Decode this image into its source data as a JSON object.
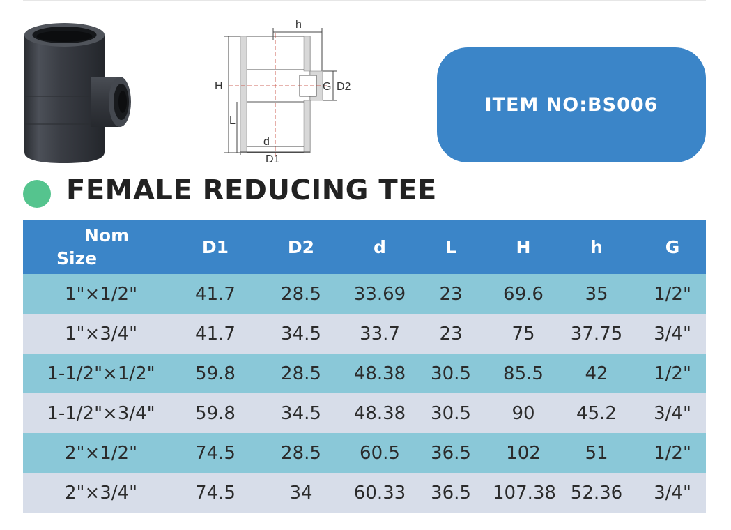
{
  "item_badge": {
    "text": "ITEM NO:BS006"
  },
  "title": "FEMALE REDUCING TEE",
  "diagram_labels": {
    "h": "h",
    "H": "H",
    "G": "G",
    "D2": "D2",
    "L": "L",
    "d": "d",
    "D1": "D1"
  },
  "table": {
    "headers": {
      "nom_line1": "Nom",
      "nom_line2": "Size",
      "d1": "D1",
      "d2": "D2",
      "d": "d",
      "l": "L",
      "h_big": "H",
      "h_small": "h",
      "g": "G"
    },
    "rows": [
      {
        "size": "1\"×1/2\"",
        "d1": "41.7",
        "d2": "28.5",
        "d": "33.69",
        "l": "23",
        "H": "69.6",
        "h": "35",
        "g": "1/2\""
      },
      {
        "size": "1\"×3/4\"",
        "d1": "41.7",
        "d2": "34.5",
        "d": "33.7",
        "l": "23",
        "H": "75",
        "h": "37.75",
        "g": "3/4\""
      },
      {
        "size": "1-1/2\"×1/2\"",
        "d1": "59.8",
        "d2": "28.5",
        "d": "48.38",
        "l": "30.5",
        "H": "85.5",
        "h": "42",
        "g": "1/2\""
      },
      {
        "size": "1-1/2\"×3/4\"",
        "d1": "59.8",
        "d2": "34.5",
        "d": "48.38",
        "l": "30.5",
        "H": "90",
        "h": "45.2",
        "g": "3/4\""
      },
      {
        "size": "2\"×1/2\"",
        "d1": "74.5",
        "d2": "28.5",
        "d": "60.5",
        "l": "36.5",
        "H": "102",
        "h": "51",
        "g": "1/2\""
      },
      {
        "size": "2\"×3/4\"",
        "d1": "74.5",
        "d2": "34",
        "d": "60.33",
        "l": "36.5",
        "H": "107.38",
        "h": "52.36",
        "g": "3/4\""
      }
    ]
  },
  "colors": {
    "accent_blue": "#3b85c8",
    "row_teal": "#8ac8d8",
    "row_grey": "#d7dde9",
    "bullet_green": "#55c48e"
  }
}
